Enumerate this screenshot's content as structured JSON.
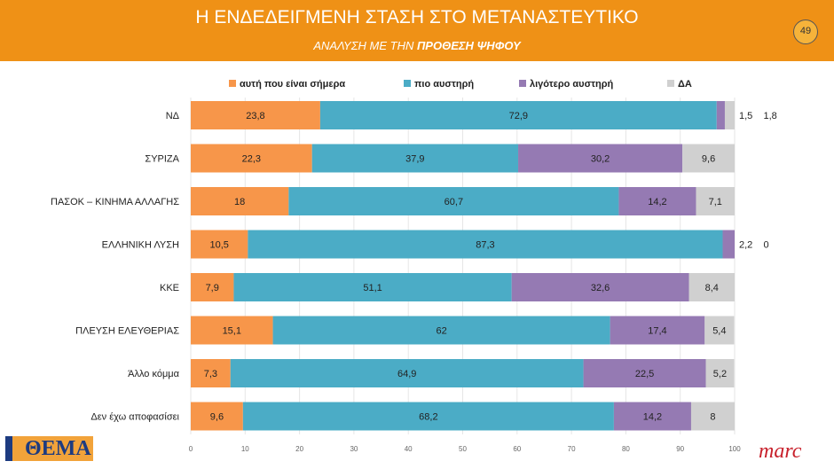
{
  "header": {
    "title": "Η ΕΝΔΕΔΕΙΓΜΕΝΗ ΣΤΑΣΗ ΣΤΟ ΜΕΤΑΝΑΣΤΕΥΤΙΚΟ",
    "subtitle_prefix": "ΑΝΑΛΥΣΗ ΜΕ ΤΗΝ ",
    "subtitle_bold": "ΠΡΟΘΕΣΗ ΨΗΦΟΥ",
    "page": "49"
  },
  "logos": {
    "left": "ΘΕΜΑ",
    "right": "marc"
  },
  "chart_data": {
    "type": "bar",
    "orientation": "horizontal",
    "stacked": true,
    "categories": [
      "ΝΔ",
      "ΣΥΡΙΖΑ",
      "ΠΑΣΟΚ – ΚΙΝΗΜΑ ΑΛΛΑΓΗΣ",
      "ΕΛΛΗΝΙΚΗ ΛΥΣΗ",
      "ΚΚΕ",
      "ΠΛΕΥΣΗ ΕΛΕΥΘΕΡΙΑΣ",
      "Άλλο κόμμα",
      "Δεν έχω αποφασίσει"
    ],
    "series": [
      {
        "name": "αυτή που είναι σήμερα",
        "color": "#F7964A",
        "values": [
          23.8,
          22.3,
          18,
          10.5,
          7.9,
          15.1,
          7.3,
          9.6
        ]
      },
      {
        "name": "πιο αυστηρή",
        "color": "#4BACC6",
        "values": [
          72.9,
          37.9,
          60.7,
          87.3,
          51.1,
          62,
          64.9,
          68.2
        ]
      },
      {
        "name": "λιγότερο αυστηρή",
        "color": "#957AB3",
        "values": [
          1.5,
          30.2,
          14.2,
          2.2,
          32.6,
          17.4,
          22.5,
          14.2
        ]
      },
      {
        "name": "ΔΑ",
        "color": "#D0D0D0",
        "values": [
          1.8,
          9.6,
          7.1,
          0,
          8.4,
          5.4,
          5.2,
          8
        ]
      }
    ],
    "xlim": [
      0,
      100
    ],
    "xticks": [
      0,
      10,
      20,
      30,
      40,
      50,
      60,
      70,
      80,
      90,
      100
    ],
    "legend": "top",
    "grid": true
  }
}
